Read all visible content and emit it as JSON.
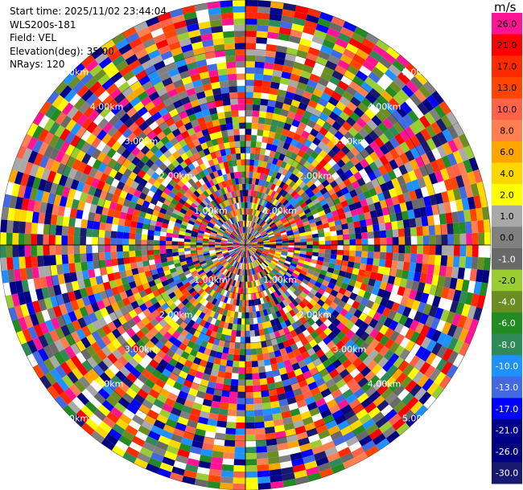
{
  "info": {
    "start_time": "Start time: 2025/11/02 23:44:04",
    "instrument": "WLS200s-181",
    "field": "Field: VEL",
    "elevation": "Elevation(deg): 35.00",
    "nrays": "NRays: 120"
  },
  "colorbar": {
    "unit": "m/s",
    "ticks": [
      {
        "label": "26.0",
        "color": "#ff1493"
      },
      {
        "label": "21.0",
        "color": "#ff0000"
      },
      {
        "label": "17.0",
        "color": "#ff2a00"
      },
      {
        "label": "13.0",
        "color": "#ff4500"
      },
      {
        "label": "10.0",
        "color": "#ff6347"
      },
      {
        "label": "8.0",
        "color": "#ff7f50"
      },
      {
        "label": "6.0",
        "color": "#ffa500"
      },
      {
        "label": "4.0",
        "color": "#ffd700"
      },
      {
        "label": "2.0",
        "color": "#ffff00"
      },
      {
        "label": "1.0",
        "color": "#a9a9a9"
      },
      {
        "label": "0.0",
        "color": "#808080"
      },
      {
        "label": "-1.0",
        "color": "#696969"
      },
      {
        "label": "-2.0",
        "color": "#9acd32"
      },
      {
        "label": "-4.0",
        "color": "#6b8e23"
      },
      {
        "label": "-6.0",
        "color": "#228b22"
      },
      {
        "label": "-8.0",
        "color": "#2e8b57"
      },
      {
        "label": "-10.0",
        "color": "#1e90ff"
      },
      {
        "label": "-13.0",
        "color": "#4169e1"
      },
      {
        "label": "-17.0",
        "color": "#0000ff"
      },
      {
        "label": "-21.0",
        "color": "#00008b"
      },
      {
        "label": "-26.0",
        "color": "#000080"
      },
      {
        "label": "-30.0",
        "color": "#191970"
      }
    ]
  },
  "chart_data": {
    "type": "heatmap",
    "projection": "polar",
    "n_rays": 120,
    "n_gates": 40,
    "max_range_km": 5.0,
    "range_rings_km": [
      1.0,
      2.0,
      3.0,
      4.0,
      5.0
    ],
    "range_labels": [
      "1.00km",
      "2.00km",
      "3.00km",
      "4.00km",
      "5.00km"
    ],
    "grid": true
  }
}
